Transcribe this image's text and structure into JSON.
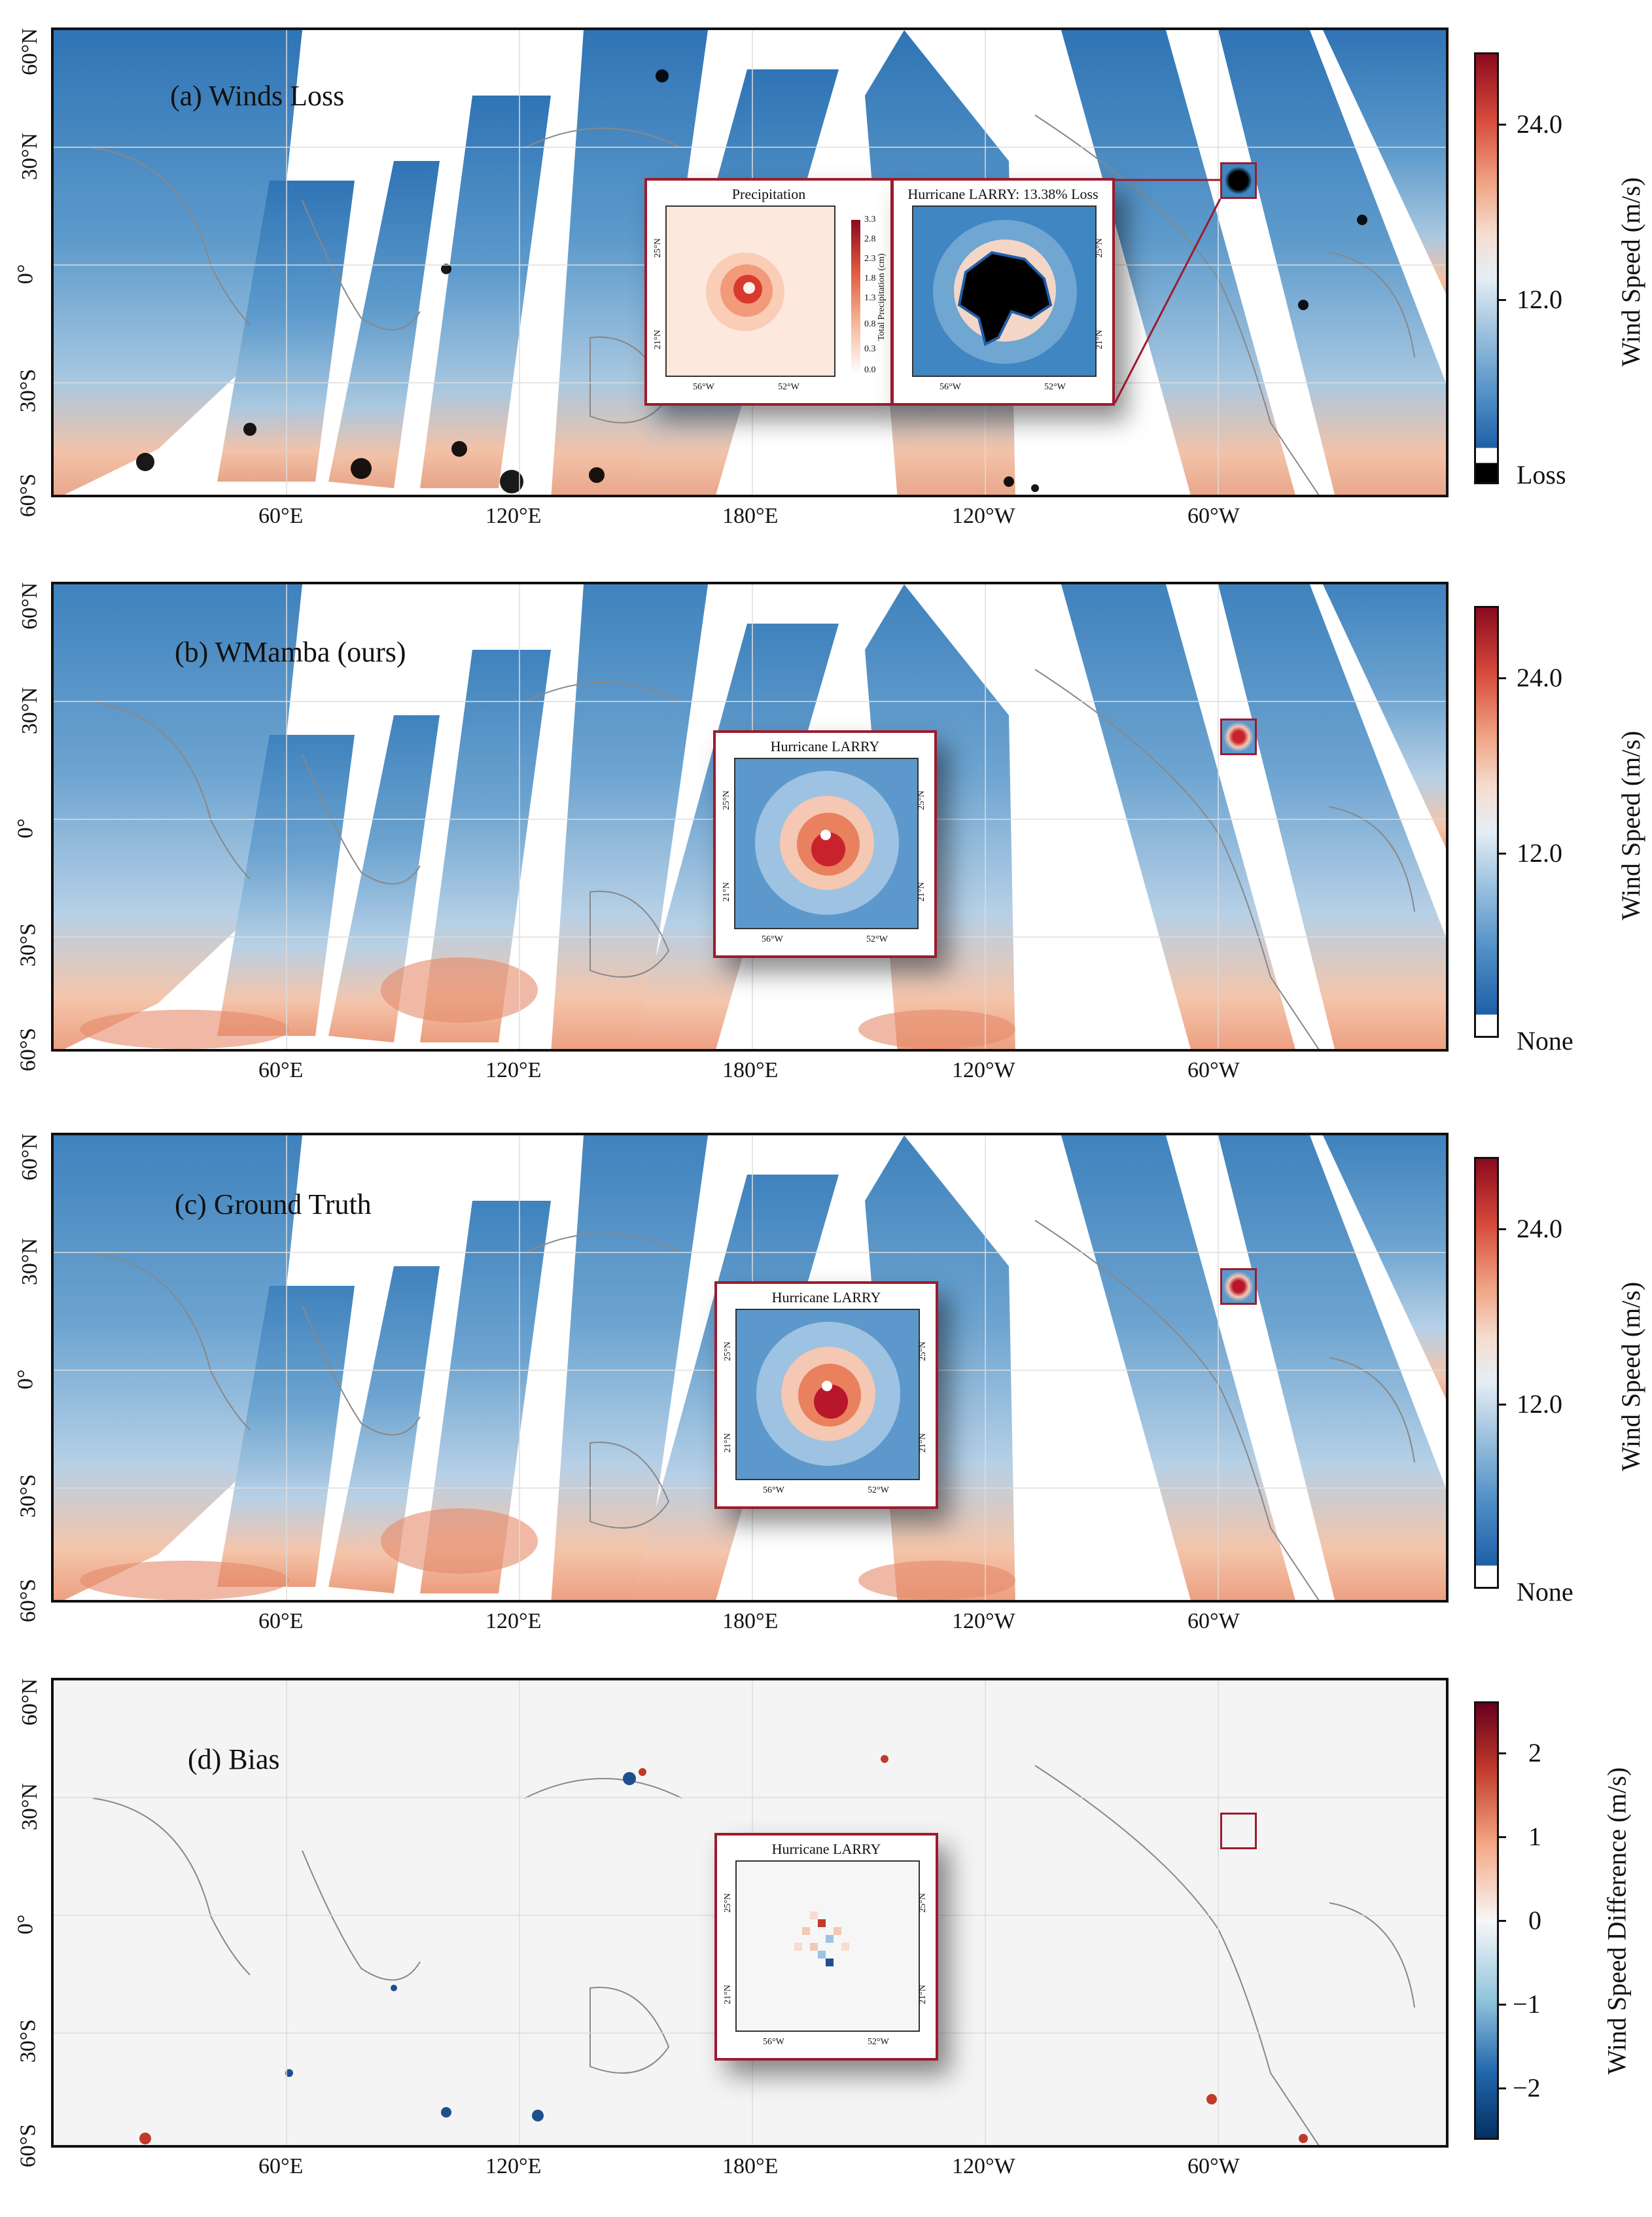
{
  "panels": [
    {
      "label": "(a) Winds Loss",
      "colorbar_title": "Wind Speed (m/s)",
      "colorbar_ticks": [
        "24.0",
        "12.0"
      ],
      "colorbar_extra": "Loss"
    },
    {
      "label": "(b) WMamba (ours)",
      "colorbar_title": "Wind Speed (m/s)",
      "colorbar_ticks": [
        "24.0",
        "12.0"
      ],
      "colorbar_extra": "None"
    },
    {
      "label": "(c) Ground Truth",
      "colorbar_title": "Wind Speed (m/s)",
      "colorbar_ticks": [
        "24.0",
        "12.0"
      ],
      "colorbar_extra": "None"
    },
    {
      "label": "(d) Bias",
      "colorbar_title": "Wind Speed Difference (m/s)",
      "colorbar_ticks": [
        "2",
        "1",
        "0",
        "−1",
        "−2"
      ],
      "colorbar_extra": ""
    }
  ],
  "axes": {
    "lat_ticks": [
      "60°N",
      "30°N",
      "0°",
      "30°S",
      "60°S"
    ],
    "lon_ticks": [
      "60°E",
      "120°E",
      "180°E",
      "120°W",
      "60°W"
    ]
  },
  "insets": {
    "a_left_title": "Precipitation",
    "a_left_cbar_title": "Total Precipitation (cm)",
    "a_left_cbar_ticks": [
      "3.3",
      "2.8",
      "2.3",
      "1.8",
      "1.3",
      "0.8",
      "0.3",
      "0.0"
    ],
    "a_right_title": "Hurricane LARRY: 13.38% Loss",
    "b_title": "Hurricane LARRY",
    "c_title": "Hurricane LARRY",
    "d_title": "Hurricane LARRY",
    "lat_ticks": [
      "25°N",
      "21°N"
    ],
    "lon_ticks": [
      "56°W",
      "52°W"
    ]
  },
  "colors": {
    "frame": "#111111",
    "highlight": "#9c1b2c",
    "wind_low": "#1f5fa8",
    "wind_mid": "#e8eef4",
    "wind_high": "#8b0a1e",
    "bias_bg": "#f4f4f4"
  }
}
